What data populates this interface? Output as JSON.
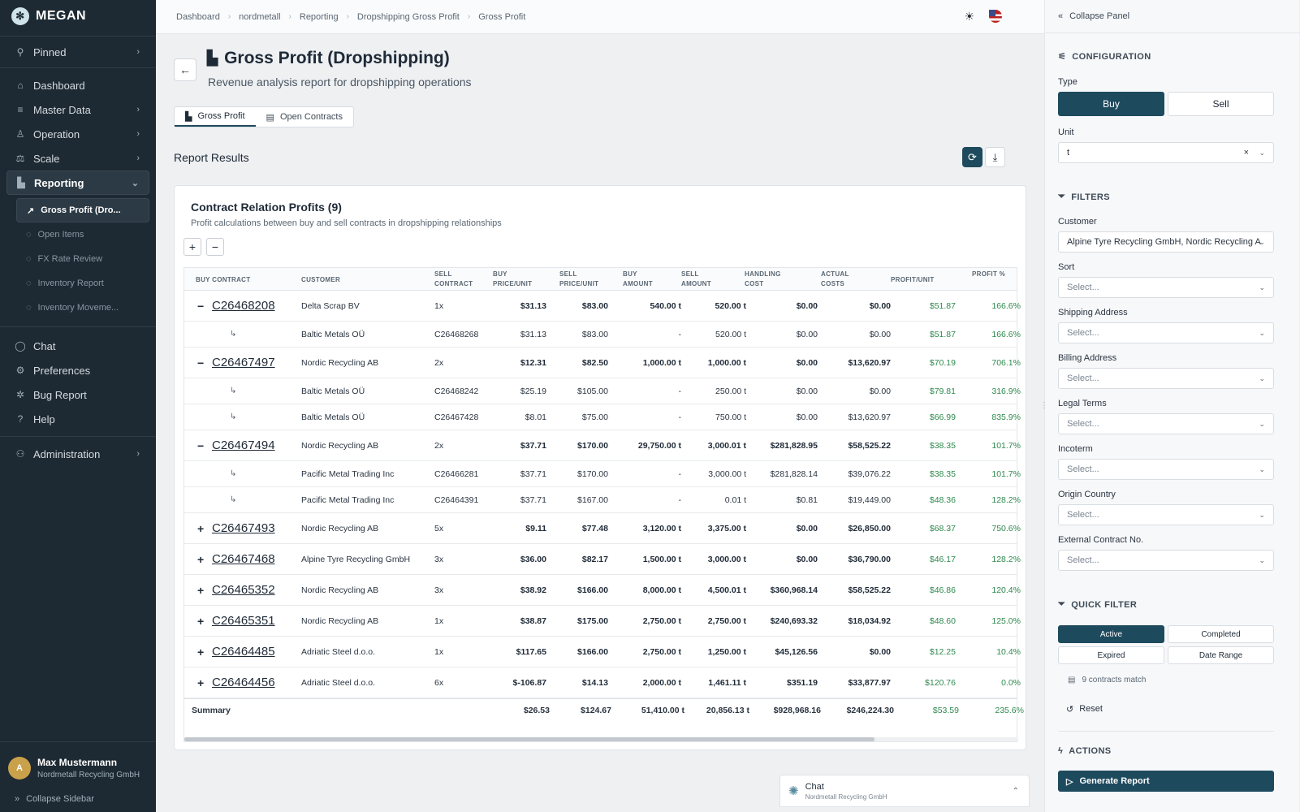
{
  "app": {
    "name": "MEGAN"
  },
  "sidebar": {
    "pinned": "Pinned",
    "items": [
      {
        "label": "Dashboard",
        "icon": "home-icon"
      },
      {
        "label": "Master Data",
        "icon": "database-icon"
      },
      {
        "label": "Operation",
        "icon": "operation-icon"
      },
      {
        "label": "Scale",
        "icon": "scale-icon"
      },
      {
        "label": "Reporting",
        "icon": "chart-icon"
      }
    ],
    "reporting_sub": [
      "Gross Profit (Dro...",
      "Open Items",
      "FX Rate Review",
      "Inventory Report",
      "Inventory Moveme..."
    ],
    "bottom": [
      "Chat",
      "Preferences",
      "Bug Report",
      "Help"
    ],
    "admin": "Administration",
    "user": {
      "initial": "A",
      "name": "Max Mustermann",
      "org": "Nordmetall Recycling GmbH"
    },
    "collapse": "Collapse Sidebar"
  },
  "breadcrumb": [
    "Dashboard",
    "nordmetall",
    "Reporting",
    "Dropshipping Gross Profit",
    "Gross Profit"
  ],
  "page": {
    "title": "Gross Profit (Dropshipping)",
    "subtitle": "Revenue analysis report for dropshipping operations"
  },
  "tabs": [
    "Gross Profit",
    "Open Contracts"
  ],
  "results_heading": "Report Results",
  "card": {
    "title": "Contract Relation Profits (9)",
    "subtitle": "Profit calculations between buy and sell contracts in dropshipping relationships"
  },
  "table": {
    "headers": [
      "BUY CONTRACT",
      "CUSTOMER",
      "SELL CONTRACT",
      "BUY PRICE/UNIT",
      "SELL PRICE/UNIT",
      "BUY AMOUNT",
      "SELL AMOUNT",
      "HANDLING COST",
      "ACTUAL COSTS",
      "PROFIT/UNIT",
      "PROFIT %"
    ],
    "rows": [
      {
        "kind": "parent",
        "toggle": "−",
        "c": [
          "C26468208",
          "Delta Scrap BV",
          "1x",
          "$31.13",
          "$83.00",
          "540.00 t",
          "520.00 t",
          "$0.00",
          "$0.00",
          "$51.87",
          "166.6%"
        ]
      },
      {
        "kind": "child",
        "toggle": "↳",
        "c": [
          "",
          "Baltic Metals OÜ",
          "C26468268",
          "$31.13",
          "$83.00",
          "-",
          "520.00 t",
          "$0.00",
          "$0.00",
          "$51.87",
          "166.6%"
        ]
      },
      {
        "kind": "parent",
        "toggle": "−",
        "c": [
          "C26467497",
          "Nordic Recycling AB",
          "2x",
          "$12.31",
          "$82.50",
          "1,000.00 t",
          "1,000.00 t",
          "$0.00",
          "$13,620.97",
          "$70.19",
          "706.1%"
        ]
      },
      {
        "kind": "child",
        "toggle": "↳",
        "c": [
          "",
          "Baltic Metals OÜ",
          "C26468242",
          "$25.19",
          "$105.00",
          "-",
          "250.00 t",
          "$0.00",
          "$0.00",
          "$79.81",
          "316.9%"
        ]
      },
      {
        "kind": "child",
        "toggle": "↳",
        "c": [
          "",
          "Baltic Metals OÜ",
          "C26467428",
          "$8.01",
          "$75.00",
          "-",
          "750.00 t",
          "$0.00",
          "$13,620.97",
          "$66.99",
          "835.9%"
        ]
      },
      {
        "kind": "parent",
        "toggle": "−",
        "c": [
          "C26467494",
          "Nordic Recycling AB",
          "2x",
          "$37.71",
          "$170.00",
          "29,750.00 t",
          "3,000.01 t",
          "$281,828.95",
          "$58,525.22",
          "$38.35",
          "101.7%"
        ]
      },
      {
        "kind": "child",
        "toggle": "↳",
        "c": [
          "",
          "Pacific Metal Trading Inc",
          "C26466281",
          "$37.71",
          "$170.00",
          "-",
          "3,000.00 t",
          "$281,828.14",
          "$39,076.22",
          "$38.35",
          "101.7%"
        ]
      },
      {
        "kind": "child",
        "toggle": "↳",
        "c": [
          "",
          "Pacific Metal Trading Inc",
          "C26464391",
          "$37.71",
          "$167.00",
          "-",
          "0.01 t",
          "$0.81",
          "$19,449.00",
          "$48.36",
          "128.2%"
        ]
      },
      {
        "kind": "parent",
        "toggle": "+",
        "c": [
          "C26467493",
          "Nordic Recycling AB",
          "5x",
          "$9.11",
          "$77.48",
          "3,120.00 t",
          "3,375.00 t",
          "$0.00",
          "$26,850.00",
          "$68.37",
          "750.6%"
        ]
      },
      {
        "kind": "parent",
        "toggle": "+",
        "c": [
          "C26467468",
          "Alpine Tyre Recycling GmbH",
          "3x",
          "$36.00",
          "$82.17",
          "1,500.00 t",
          "3,000.00 t",
          "$0.00",
          "$36,790.00",
          "$46.17",
          "128.2%"
        ]
      },
      {
        "kind": "parent",
        "toggle": "+",
        "c": [
          "C26465352",
          "Nordic Recycling AB",
          "3x",
          "$38.92",
          "$166.00",
          "8,000.00 t",
          "4,500.01 t",
          "$360,968.14",
          "$58,525.22",
          "$46.86",
          "120.4%"
        ]
      },
      {
        "kind": "parent",
        "toggle": "+",
        "c": [
          "C26465351",
          "Nordic Recycling AB",
          "1x",
          "$38.87",
          "$175.00",
          "2,750.00 t",
          "2,750.00 t",
          "$240,693.32",
          "$18,034.92",
          "$48.60",
          "125.0%"
        ]
      },
      {
        "kind": "parent",
        "toggle": "+",
        "c": [
          "C26464485",
          "Adriatic Steel d.o.o.",
          "1x",
          "$117.65",
          "$166.00",
          "2,750.00 t",
          "1,250.00 t",
          "$45,126.56",
          "$0.00",
          "$12.25",
          "10.4%"
        ]
      },
      {
        "kind": "parent",
        "toggle": "+",
        "c": [
          "C26464456",
          "Adriatic Steel d.o.o.",
          "6x",
          "$-106.87",
          "$14.13",
          "2,000.00 t",
          "1,461.11 t",
          "$351.19",
          "$33,877.97",
          "$120.76",
          "0.0%"
        ]
      }
    ],
    "summary": [
      "Summary",
      "$26.53",
      "$124.67",
      "51,410.00 t",
      "20,856.13 t",
      "$928,968.16",
      "$246,224.30",
      "$53.59",
      "235.6%"
    ]
  },
  "chat_widget": {
    "title": "Chat",
    "org": "Nordmetall Recycling GmbH"
  },
  "panel": {
    "collapse": "Collapse Panel",
    "configuration": "CONFIGURATION",
    "type_label": "Type",
    "type_options": [
      "Buy",
      "Sell"
    ],
    "type_selected": "Buy",
    "unit_label": "Unit",
    "unit_value": "t",
    "filters": "FILTERS",
    "fields": [
      {
        "label": "Customer",
        "value": "Alpine Tyre Recycling GmbH, Nordic Recycling A"
      },
      {
        "label": "Sort",
        "value": "Select..."
      },
      {
        "label": "Shipping Address",
        "value": "Select..."
      },
      {
        "label": "Billing Address",
        "value": "Select..."
      },
      {
        "label": "Legal Terms",
        "value": "Select..."
      },
      {
        "label": "Incoterm",
        "value": "Select..."
      },
      {
        "label": "Origin Country",
        "value": "Select..."
      },
      {
        "label": "External Contract No.",
        "value": "Select..."
      }
    ],
    "quick_filter": "QUICK FILTER",
    "quick_options": [
      "Active",
      "Completed",
      "Expired",
      "Date Range"
    ],
    "match_text": "9 contracts match",
    "reset": "Reset",
    "actions": "ACTIONS",
    "generate": "Generate Report"
  },
  "colors": {
    "sidebar": "#1e2a33",
    "accent": "#1e4a5e",
    "positive": "#2f8a4e"
  }
}
